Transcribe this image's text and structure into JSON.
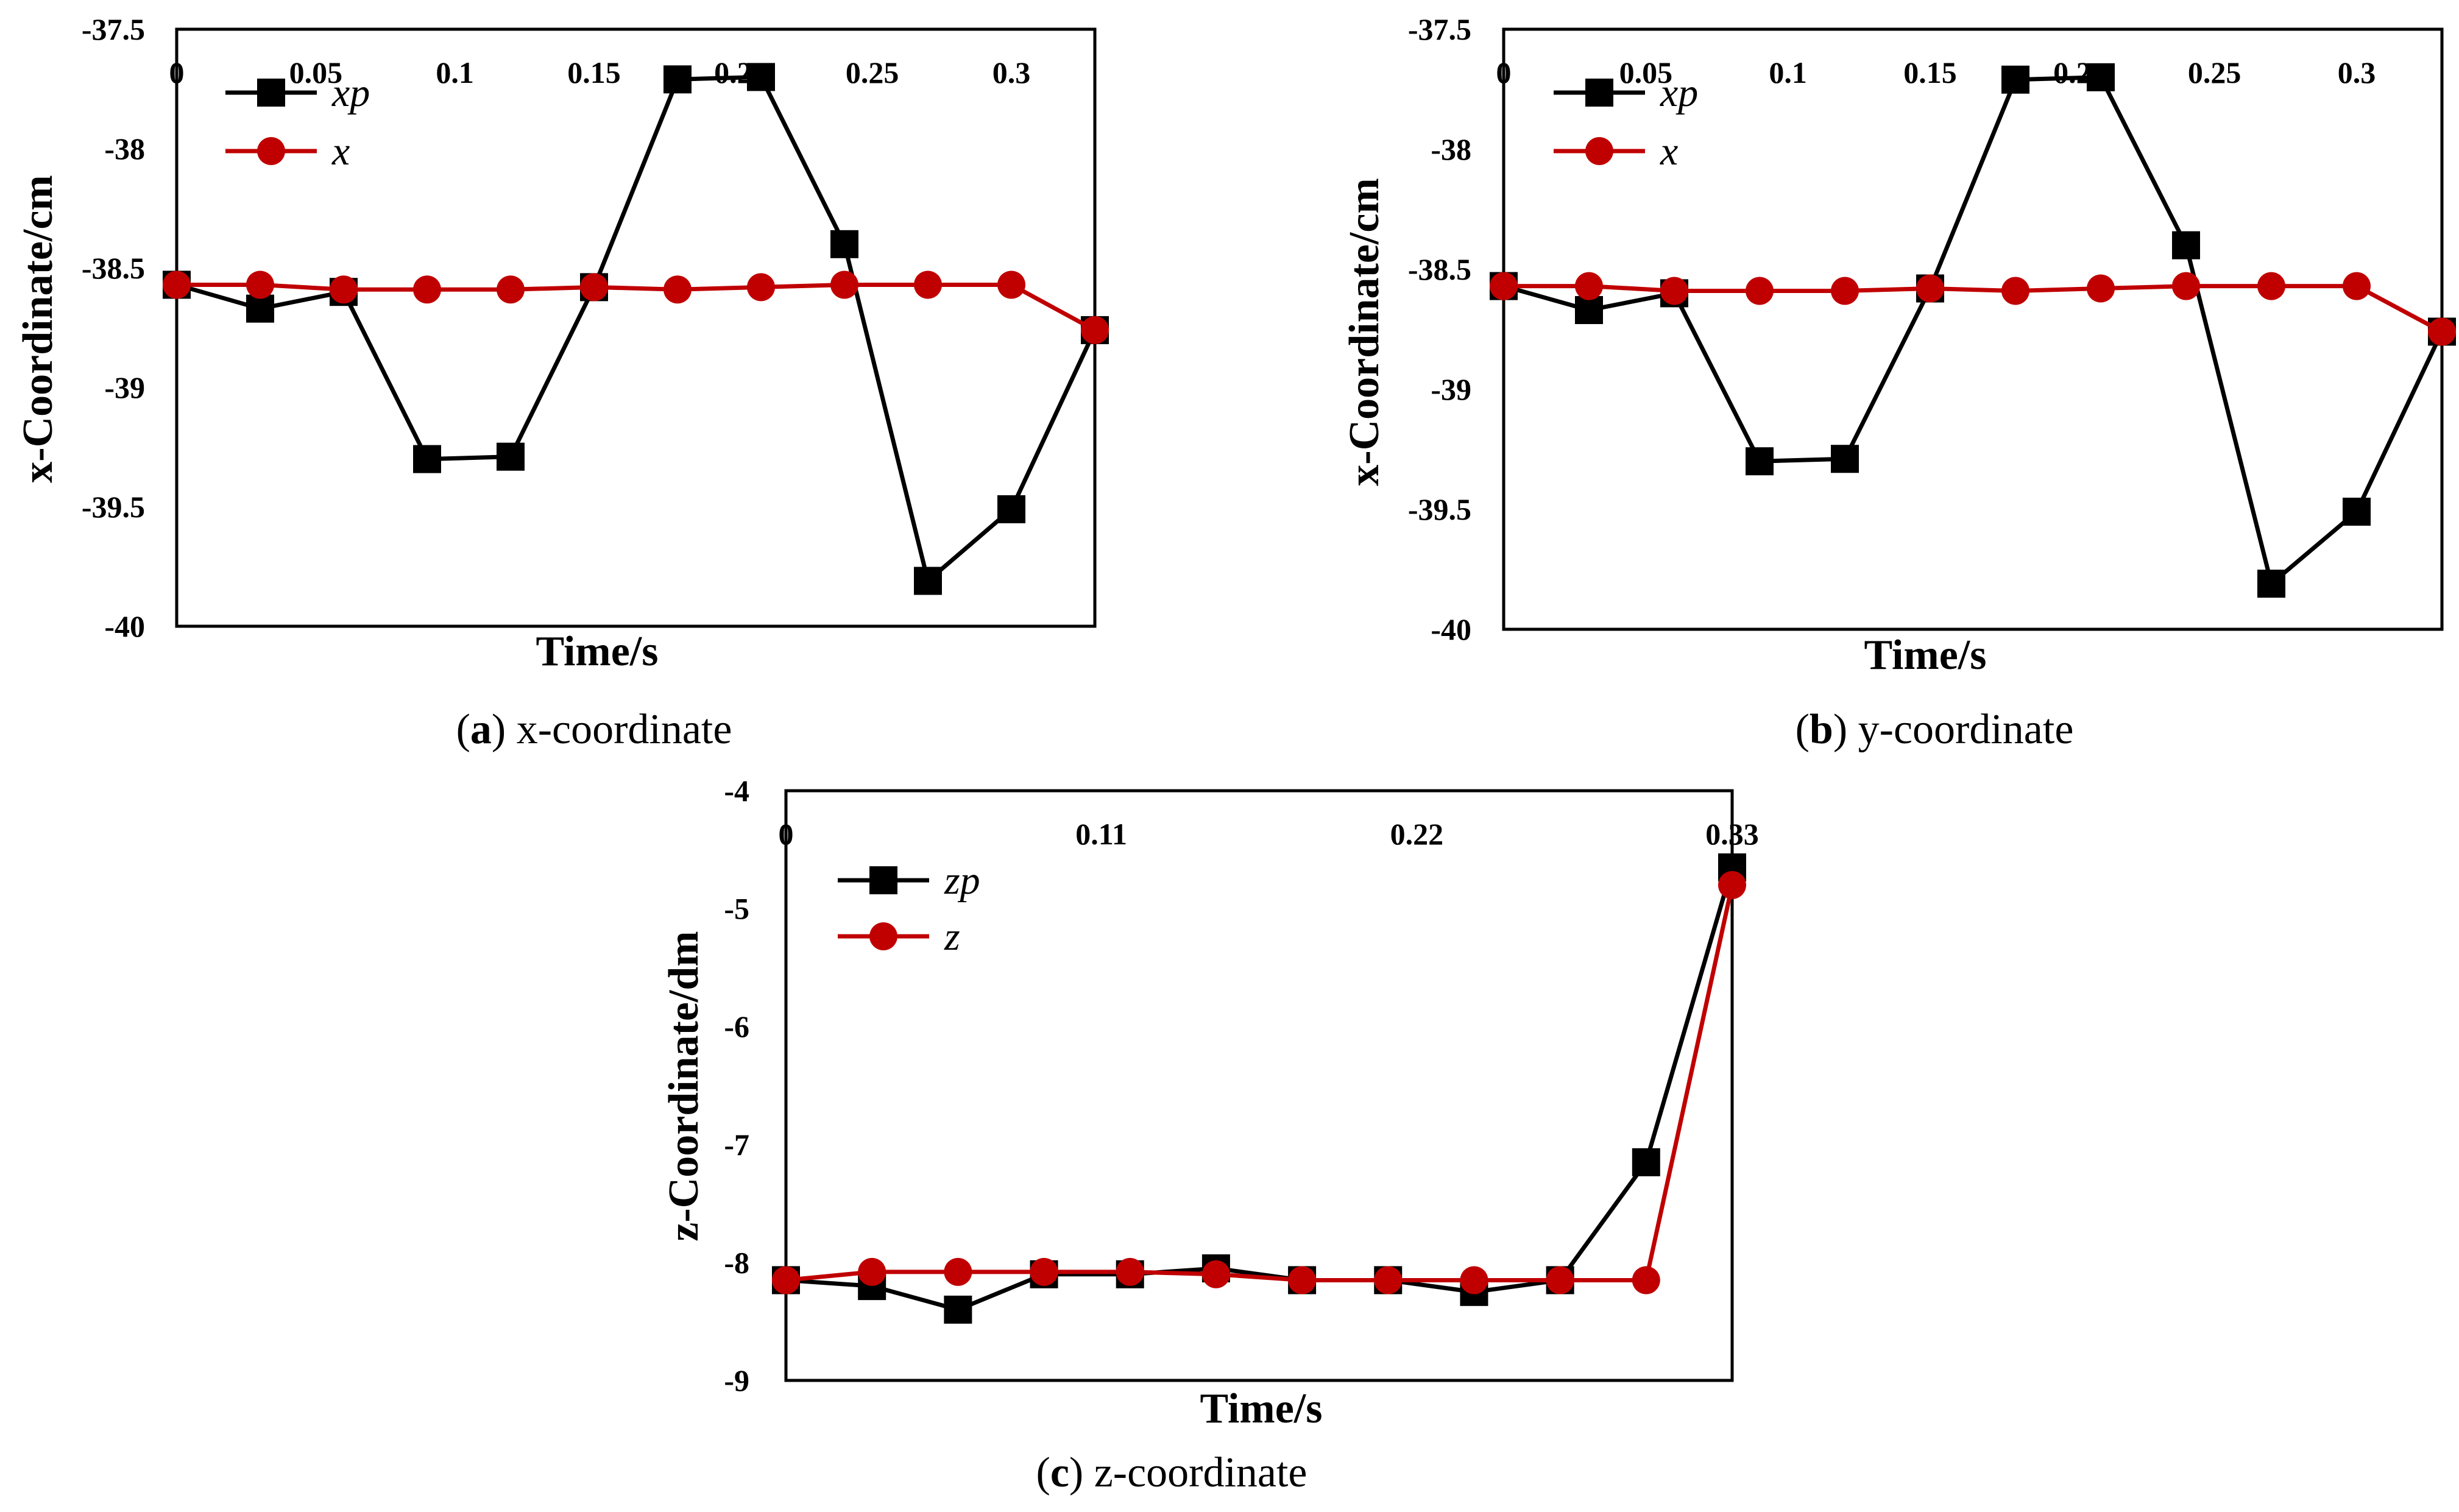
{
  "chart_data": [
    {
      "type": "line",
      "panel": "a",
      "caption_letter": "a",
      "caption_text": " x-coordinate",
      "xlabel": "Time/s",
      "ylabel": "x-Coordinate/cm",
      "xlim": [
        0,
        0.33
      ],
      "ylim": [
        -40,
        -37.5
      ],
      "x_ticks": [
        0,
        0.05,
        0.1,
        0.15,
        0.2,
        0.25,
        0.3
      ],
      "x_tick_labels": [
        "0",
        "0.05",
        "0.1",
        "0.15",
        "0.2",
        "0.25",
        "0.3"
      ],
      "y_ticks": [
        -37.5,
        -38,
        -38.5,
        -39,
        -39.5,
        -40
      ],
      "y_tick_labels": [
        "-37.5",
        "-38",
        "-38.5",
        "-39",
        "-39.5",
        "-40"
      ],
      "legend_position": "top-left",
      "series": [
        {
          "name": "xp",
          "marker": "square",
          "color": "#000000",
          "x": [
            0,
            0.03,
            0.06,
            0.09,
            0.12,
            0.15,
            0.18,
            0.21,
            0.24,
            0.27,
            0.3,
            0.33
          ],
          "values": [
            -38.57,
            -38.67,
            -38.6,
            -39.3,
            -39.29,
            -38.58,
            -37.71,
            -37.7,
            -38.4,
            -39.81,
            -39.51,
            -38.76
          ]
        },
        {
          "name": "x",
          "marker": "circle",
          "color": "#c00000",
          "x": [
            0,
            0.03,
            0.06,
            0.09,
            0.12,
            0.15,
            0.18,
            0.21,
            0.24,
            0.27,
            0.3,
            0.33
          ],
          "values": [
            -38.57,
            -38.57,
            -38.59,
            -38.59,
            -38.59,
            -38.58,
            -38.59,
            -38.58,
            -38.57,
            -38.57,
            -38.57,
            -38.76
          ]
        }
      ]
    },
    {
      "type": "line",
      "panel": "b",
      "caption_letter": "b",
      "caption_text": " y-coordinate",
      "xlabel": "Time/s",
      "ylabel": "x-Coordinate/cm",
      "xlim": [
        0,
        0.33
      ],
      "ylim": [
        -40,
        -37.5
      ],
      "x_ticks": [
        0,
        0.05,
        0.1,
        0.15,
        0.2,
        0.25,
        0.3
      ],
      "x_tick_labels": [
        "0",
        "0.05",
        "0.1",
        "0.15",
        "0.2",
        "0.25",
        "0.3"
      ],
      "y_ticks": [
        -37.5,
        -38,
        -38.5,
        -39,
        -39.5,
        -40
      ],
      "y_tick_labels": [
        "-37.5",
        "-38",
        "-38.5",
        "-39",
        "-39.5",
        "-40"
      ],
      "legend_position": "top-left",
      "series": [
        {
          "name": "xp",
          "marker": "square",
          "color": "#000000",
          "x": [
            0,
            0.03,
            0.06,
            0.09,
            0.12,
            0.15,
            0.18,
            0.21,
            0.24,
            0.27,
            0.3,
            0.33
          ],
          "values": [
            -38.57,
            -38.67,
            -38.6,
            -39.3,
            -39.29,
            -38.58,
            -37.71,
            -37.7,
            -38.4,
            -39.81,
            -39.51,
            -38.76
          ]
        },
        {
          "name": "x",
          "marker": "circle",
          "color": "#c00000",
          "x": [
            0,
            0.03,
            0.06,
            0.09,
            0.12,
            0.15,
            0.18,
            0.21,
            0.24,
            0.27,
            0.3,
            0.33
          ],
          "values": [
            -38.57,
            -38.57,
            -38.59,
            -38.59,
            -38.59,
            -38.58,
            -38.59,
            -38.58,
            -38.57,
            -38.57,
            -38.57,
            -38.76
          ]
        }
      ]
    },
    {
      "type": "line",
      "panel": "c",
      "caption_letter": "c",
      "caption_text": " z-coordinate",
      "xlabel": "Time/s",
      "ylabel": "z-Coordinate/dm",
      "xlim": [
        0,
        0.33
      ],
      "ylim": [
        -9,
        -4
      ],
      "x_ticks": [
        0,
        0.11,
        0.22,
        0.33
      ],
      "x_tick_labels": [
        "0",
        "0.11",
        "0.22",
        "0.33"
      ],
      "y_ticks": [
        -4,
        -5,
        -6,
        -7,
        -8,
        -9
      ],
      "y_tick_labels": [
        "-4",
        "-5",
        "-6",
        "-7",
        "-8",
        "-9"
      ],
      "legend_position": "top-left",
      "series": [
        {
          "name": "zp",
          "marker": "square",
          "color": "#000000",
          "x": [
            0,
            0.03,
            0.06,
            0.09,
            0.12,
            0.15,
            0.18,
            0.21,
            0.24,
            0.27,
            0.3,
            0.33
          ],
          "values": [
            -8.15,
            -8.2,
            -8.4,
            -8.1,
            -8.1,
            -8.05,
            -8.15,
            -8.15,
            -8.25,
            -8.15,
            -7.15,
            -4.65
          ]
        },
        {
          "name": "z",
          "marker": "circle",
          "color": "#c00000",
          "x": [
            0,
            0.03,
            0.06,
            0.09,
            0.12,
            0.15,
            0.18,
            0.21,
            0.24,
            0.27,
            0.3,
            0.33
          ],
          "values": [
            -8.15,
            -8.08,
            -8.08,
            -8.08,
            -8.08,
            -8.1,
            -8.15,
            -8.15,
            -8.15,
            -8.15,
            -8.15,
            -4.8
          ]
        }
      ]
    }
  ]
}
